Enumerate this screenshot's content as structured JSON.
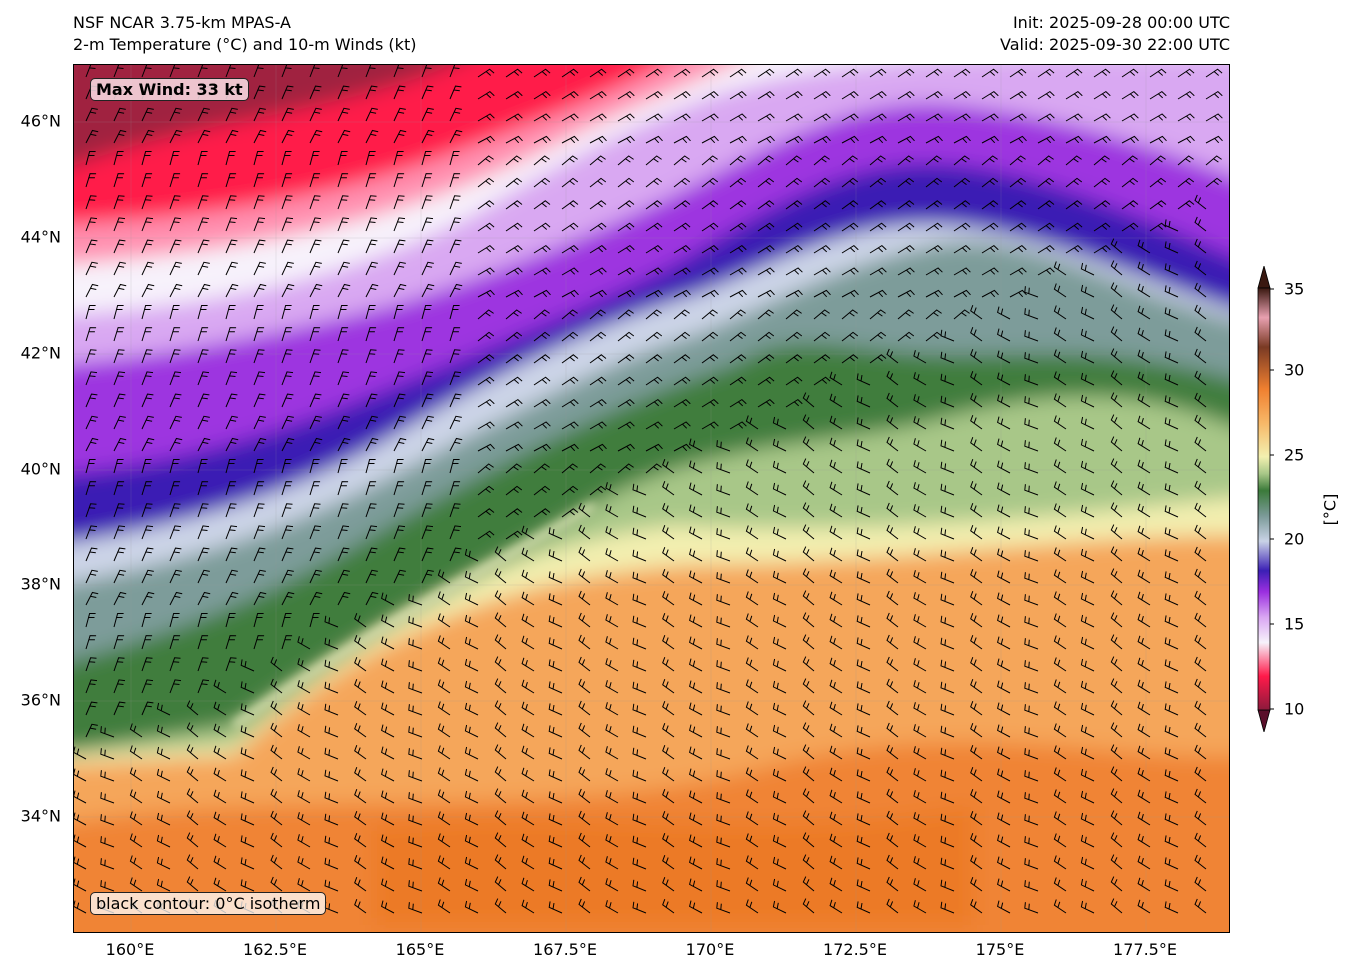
{
  "header": {
    "model": "NSF NCAR 3.75-km MPAS-A",
    "fields": "2-m Temperature (°C) and 10-m Winds (kt)",
    "init": "Init: 2025-09-28 00:00 UTC",
    "valid": "Valid: 2025-09-30 22:00 UTC"
  },
  "map": {
    "max_wind_label": "Max Wind: 33 kt",
    "contour_note": "black contour: 0°C isotherm",
    "lat_ticks": [
      "46°N",
      "44°N",
      "42°N",
      "40°N",
      "38°N",
      "36°N",
      "34°N"
    ],
    "lon_ticks": [
      "160°E",
      "162.5°E",
      "165°E",
      "167.5°E",
      "170°E",
      "172.5°E",
      "175°E",
      "177.5°E"
    ]
  },
  "colorbar": {
    "label": "[°C]",
    "ticks": [
      "35",
      "30",
      "25",
      "20",
      "15",
      "10"
    ],
    "range": [
      10,
      35
    ],
    "colors": {
      "t10": "#8c1a3c",
      "t12": "#ff1a4a",
      "t14": "#f7f2fb",
      "t15": "#d9a6f2",
      "t16": "#9b2fe0",
      "t17": "#3b1fb5",
      "t19": "#c9d3e6",
      "t21": "#7b9a98",
      "t23": "#3b7a3a",
      "t24": "#a8c788",
      "t25": "#f3f0b0",
      "t27": "#f7b868",
      "t29": "#f08030",
      "t31": "#7a3a24",
      "t33": "#e8a0b0",
      "t35": "#3a1810"
    }
  }
}
